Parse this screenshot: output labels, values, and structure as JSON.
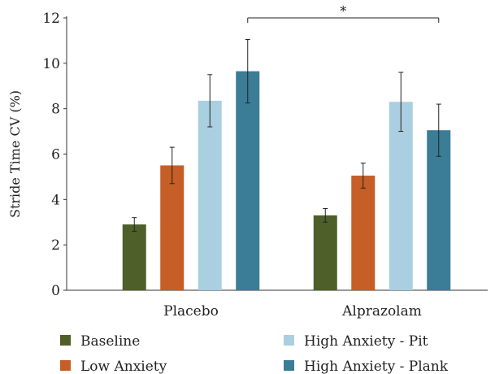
{
  "chart_data": {
    "type": "bar",
    "ylabel": "Stride Time CV (%)",
    "ylim": [
      0,
      12
    ],
    "yticks": [
      0,
      2,
      4,
      6,
      8,
      10,
      12
    ],
    "grid": false,
    "legend_position": "bottom",
    "categories": [
      "Placebo",
      "Alprazolam"
    ],
    "series": [
      {
        "name": "Baseline",
        "color": "#4e5f2a",
        "values": [
          2.9,
          3.3
        ],
        "errors": [
          0.3,
          0.3
        ]
      },
      {
        "name": "Low Anxiety",
        "color": "#c55e27",
        "values": [
          5.5,
          5.05
        ],
        "errors": [
          0.8,
          0.55
        ]
      },
      {
        "name": "High Anxiety - Pit",
        "color": "#a9cfe0",
        "values": [
          8.35,
          8.3
        ],
        "errors": [
          1.15,
          1.3
        ]
      },
      {
        "name": "High Anxiety - Plank",
        "color": "#3b7c96",
        "values": [
          9.65,
          7.05
        ],
        "errors": [
          1.4,
          1.15
        ]
      }
    ],
    "annotations": [
      {
        "text": "*",
        "from": {
          "category": "Placebo",
          "series": "High Anxiety - Plank"
        },
        "to": {
          "category": "Alprazolam",
          "series": "High Anxiety - Plank"
        },
        "y": 12
      }
    ]
  }
}
